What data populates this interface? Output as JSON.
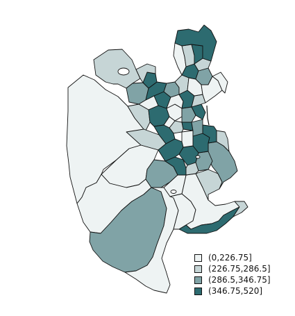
{
  "map": {
    "fills": [
      "#eef3f3",
      "#c6d5d6",
      "#80a3a6",
      "#2d6b70"
    ]
  },
  "legend": {
    "items": [
      {
        "label": "(0,226.75]",
        "color": "#eef3f3"
      },
      {
        "label": "(226.75,286.5]",
        "color": "#c6d5d6"
      },
      {
        "label": "(286.5,346.75]",
        "color": "#80a3a6"
      },
      {
        "label": "(346.75,520]",
        "color": "#2d6b70"
      }
    ]
  }
}
